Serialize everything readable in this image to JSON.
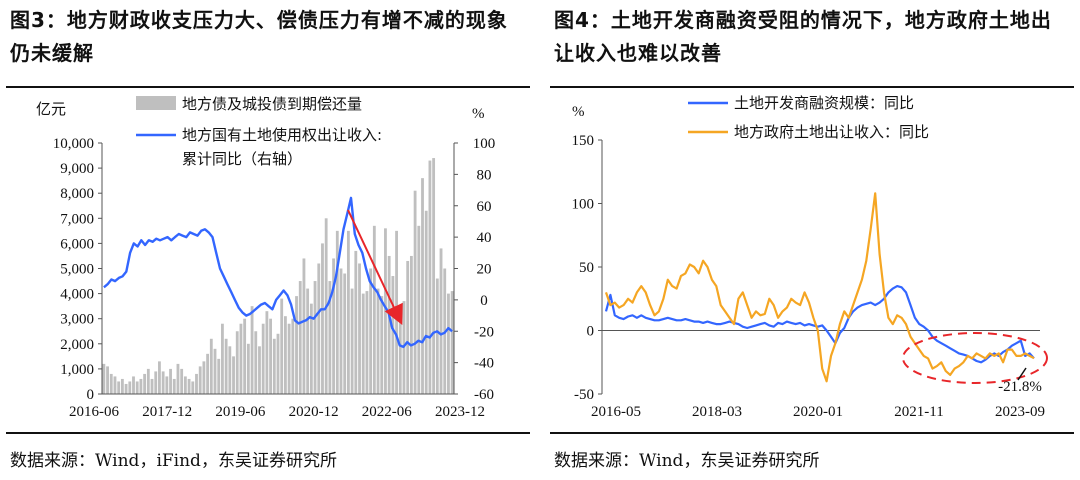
{
  "source_label": "数据来源：Wind，iFind，东吴证券研究所",
  "source_label2": "数据来源：Wind，东吴证券研究所",
  "chart_data": [
    {
      "type": "bar+line",
      "title": "图3：地方财政收支压力大、偿债压力有增不减的现象仍未缓解",
      "left_unit": "亿元",
      "right_unit": "%",
      "left_ticks": [
        "0",
        "1,000",
        "2,000",
        "3,000",
        "4,000",
        "5,000",
        "6,000",
        "7,000",
        "8,000",
        "9,000",
        "10,000"
      ],
      "right_ticks": [
        "-60",
        "-40",
        "-20",
        "0",
        "20",
        "40",
        "60",
        "80",
        "100"
      ],
      "ylim_left": [
        0,
        10000
      ],
      "ylim_right": [
        -60,
        100
      ],
      "x_ticks": [
        "2016-06",
        "2017-12",
        "2019-06",
        "2020-12",
        "2022-06",
        "2023-12"
      ],
      "grid": false,
      "legend_position": "top",
      "bar_series": {
        "name": "地方债及城投债到期偿还量",
        "color": "#bfbfbf",
        "values": [
          1200,
          1100,
          800,
          700,
          500,
          600,
          400,
          500,
          700,
          500,
          600,
          800,
          1000,
          600,
          900,
          1300,
          900,
          700,
          1000,
          600,
          1200,
          1000,
          700,
          600,
          500,
          800,
          1100,
          1300,
          1600,
          2200,
          1800,
          1400,
          2800,
          2200,
          1900,
          1500,
          2500,
          2800,
          3000,
          2000,
          3500,
          2500,
          1900,
          2800,
          3300,
          3000,
          2200,
          2400,
          3800,
          3100,
          2800,
          3000,
          3900,
          4500,
          5400,
          4200,
          3600,
          4500,
          5200,
          6000,
          7000,
          4500,
          5400,
          6500,
          5000,
          4800,
          6500,
          4200,
          5700,
          5200,
          4000,
          4100,
          5000,
          6700,
          4200,
          3900,
          6600,
          5500,
          4700,
          6500,
          3000,
          3700,
          5300,
          5500,
          8100,
          6700,
          8600,
          7300,
          9300,
          9400,
          4600,
          5800,
          5000,
          4000,
          4100
        ]
      },
      "line_series": {
        "name": "地方国有土地使用权出让收入:累计同比（右轴）",
        "legend_line2": "累计同比（右轴）",
        "color": "#3366ff",
        "values": [
          8,
          10,
          13,
          12,
          14,
          15,
          18,
          30,
          36,
          34,
          38,
          35,
          38,
          37,
          39,
          38,
          39,
          40,
          38,
          40,
          42,
          41,
          40,
          43,
          42,
          41,
          44,
          45,
          43,
          40,
          30,
          20,
          15,
          10,
          5,
          0,
          -5,
          -8,
          -10,
          -9,
          -7,
          -5,
          -3,
          -2,
          -4,
          -6,
          0,
          3,
          6,
          3,
          -3,
          -13,
          -15,
          -14,
          -13,
          -11,
          -12,
          -9,
          -6,
          -6,
          -2,
          5,
          15,
          30,
          45,
          55,
          65,
          42,
          35,
          30,
          20,
          12,
          8,
          5,
          0,
          -4,
          -8,
          -18,
          -22,
          -29,
          -30,
          -27,
          -29,
          -28,
          -26,
          -27,
          -23,
          -24,
          -21,
          -20,
          -22,
          -21,
          -18,
          -20
        ]
      },
      "annotation": "downward red arrow"
    },
    {
      "type": "line",
      "title": "图4：土地开发商融资受阻的情况下，地方政府土地出让收入也难以改善",
      "unit": "%",
      "y_ticks": [
        "-50",
        "0",
        "50",
        "100",
        "150"
      ],
      "ylim": [
        -50,
        150
      ],
      "x_ticks": [
        "2016-05",
        "2018-03",
        "2020-01",
        "2021-11",
        "2023-09"
      ],
      "grid": false,
      "legend_position": "top",
      "series": [
        {
          "name": "土地开发商融资规模：同比",
          "color": "#3366ff",
          "values": [
            15,
            28,
            12,
            10,
            9,
            11,
            12,
            10,
            12,
            10,
            9,
            8,
            8,
            9,
            10,
            9,
            8,
            8,
            9,
            8,
            7,
            7,
            6,
            7,
            6,
            5,
            5,
            6,
            7,
            6,
            5,
            3,
            2,
            3,
            4,
            5,
            6,
            4,
            3,
            6,
            5,
            7,
            6,
            5,
            6,
            4,
            5,
            4,
            3,
            4,
            0,
            -5,
            -10,
            -2,
            2,
            10,
            15,
            18,
            20,
            21,
            22,
            20,
            22,
            25,
            30,
            33,
            35,
            34,
            30,
            20,
            10,
            5,
            3,
            0,
            -5,
            -8,
            -10,
            -12,
            -14,
            -16,
            -18,
            -19,
            -20,
            -22,
            -24,
            -25,
            -23,
            -20,
            -18,
            -20,
            -17,
            -15,
            -12,
            -10,
            -8,
            -20,
            -18,
            -22
          ]
        },
        {
          "name": "地方政府土地出让收入：同比",
          "color": "#f5a623",
          "values": [
            30,
            20,
            22,
            18,
            20,
            25,
            22,
            30,
            35,
            30,
            20,
            12,
            15,
            25,
            40,
            35,
            33,
            43,
            45,
            52,
            50,
            45,
            55,
            50,
            40,
            35,
            20,
            15,
            10,
            5,
            25,
            30,
            20,
            10,
            15,
            12,
            13,
            25,
            20,
            10,
            15,
            18,
            25,
            22,
            20,
            30,
            22,
            10,
            0,
            -30,
            -40,
            -20,
            -10,
            5,
            15,
            10,
            20,
            30,
            40,
            55,
            80,
            108,
            60,
            30,
            10,
            5,
            12,
            10,
            5,
            -5,
            -10,
            -15,
            -20,
            -22,
            -30,
            -28,
            -25,
            -32,
            -35,
            -30,
            -28,
            -25,
            -20,
            -22,
            -18,
            -20,
            -22,
            -18,
            -20,
            -18,
            -25,
            -15,
            -15,
            -20,
            -20,
            -18,
            -20,
            -21.8
          ]
        }
      ],
      "annotation_label": "-21.8%",
      "highlight": "red dashed ellipse around 2021-11 to 2023-09"
    }
  ]
}
